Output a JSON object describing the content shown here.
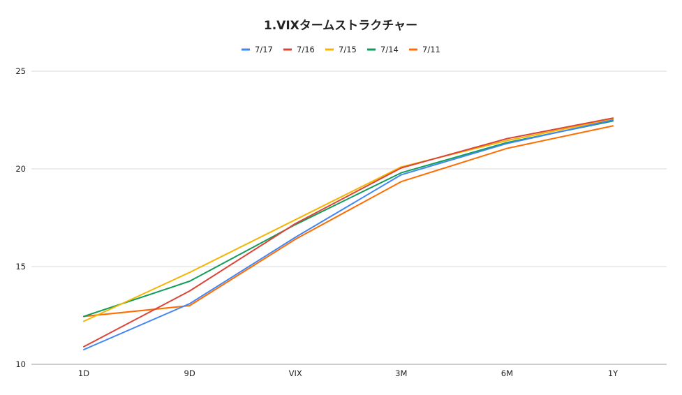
{
  "chart_data": {
    "type": "line",
    "title": "1.VIXタームストラクチャー",
    "xlabel": "",
    "ylabel": "",
    "categories": [
      "1D",
      "9D",
      "VIX",
      "3M",
      "6M",
      "1Y"
    ],
    "ylim": [
      10,
      25
    ],
    "yticks": [
      10,
      15,
      20,
      25
    ],
    "grid": true,
    "legend_position": "top-center",
    "series": [
      {
        "name": "7/17",
        "color": "#4285f4",
        "values": [
          10.75,
          13.1,
          16.5,
          19.7,
          21.3,
          22.5
        ]
      },
      {
        "name": "7/16",
        "color": "#db4437",
        "values": [
          10.9,
          13.75,
          17.2,
          20.05,
          21.55,
          22.6
        ]
      },
      {
        "name": "7/15",
        "color": "#f4b400",
        "values": [
          12.2,
          14.7,
          17.4,
          20.1,
          21.45,
          22.55
        ]
      },
      {
        "name": "7/14",
        "color": "#0f9d58",
        "values": [
          12.45,
          14.25,
          17.15,
          19.8,
          21.35,
          22.45
        ]
      },
      {
        "name": "7/11",
        "color": "#ff6d01",
        "values": [
          12.45,
          13.0,
          16.4,
          19.35,
          21.05,
          22.2
        ]
      }
    ]
  }
}
